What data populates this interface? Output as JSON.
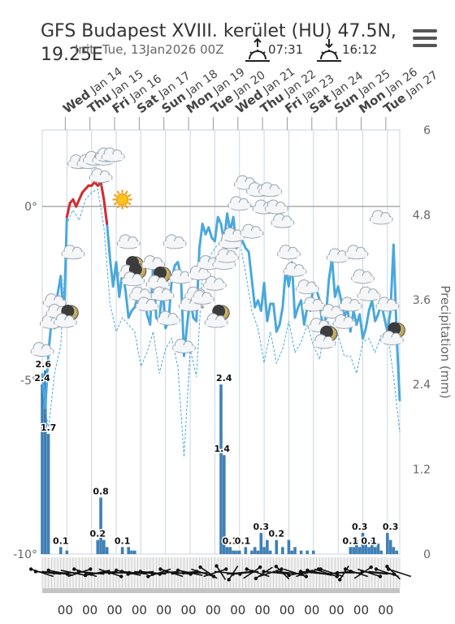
{
  "header": {
    "title": "GFS Budapest XVIII. kerület (HU) 47.5N, 19.25E",
    "init": "Init: Tue, 13Jan2026 00Z",
    "sunrise": "07:31",
    "sunset": "16:12"
  },
  "icons": {
    "menu": "hamburger-menu-icon",
    "sunrise": "sunrise-icon",
    "sunset": "sunset-icon"
  },
  "colors": {
    "temperature": "#4aa8dc",
    "temperature_above_zero": "#d62d2d",
    "precip_bars": "#3f7fb5",
    "grid": "#c9d6e3",
    "axis": "#999999"
  },
  "chart_data": {
    "type": "line",
    "title": "",
    "days": [
      {
        "dow": "Wed",
        "date": "Jan 14"
      },
      {
        "dow": "Thu",
        "date": "Jan 15"
      },
      {
        "dow": "Fri",
        "date": "Jan 16"
      },
      {
        "dow": "Sat",
        "date": "Jan 17"
      },
      {
        "dow": "Sun",
        "date": "Jan 18"
      },
      {
        "dow": "Mon",
        "date": "Jan 19"
      },
      {
        "dow": "Tue",
        "date": "Jan 20"
      },
      {
        "dow": "Wed",
        "date": "Jan 21"
      },
      {
        "dow": "Thu",
        "date": "Jan 22"
      },
      {
        "dow": "Fri",
        "date": "Jan 23"
      },
      {
        "dow": "Sat",
        "date": "Jan 24"
      },
      {
        "dow": "Sun",
        "date": "Jan 25"
      },
      {
        "dow": "Mon",
        "date": "Jan 26"
      },
      {
        "dow": "Tue",
        "date": "Jan 27"
      }
    ],
    "hour_labels": [
      "00",
      "00",
      "00",
      "00",
      "00",
      "00",
      "00",
      "00",
      "00",
      "00",
      "00",
      "00",
      "00",
      "00"
    ],
    "x_range_hours": [
      0,
      348
    ],
    "y_left": {
      "ticks": [
        0,
        -5,
        -10
      ],
      "tick_labels": [
        "0°",
        "-5°",
        "-10°"
      ],
      "range": [
        -10,
        2.2
      ]
    },
    "y_right": {
      "label": "Precipitation (mm)",
      "ticks": [
        6,
        4.8,
        3.6,
        2.4,
        1.2,
        0
      ],
      "tick_labels": [
        "6",
        "4.8",
        "3.6",
        "2.4",
        "1.2",
        "0"
      ],
      "range": [
        0,
        6
      ]
    },
    "temperature": {
      "hours": [
        0,
        3,
        6,
        9,
        12,
        15,
        18,
        21,
        24,
        27,
        30,
        33,
        36,
        39,
        42,
        45,
        48,
        51,
        54,
        57,
        60,
        63,
        66,
        69,
        72,
        75,
        78,
        81,
        84,
        87,
        90,
        93,
        96,
        99,
        102,
        105,
        108,
        111,
        114,
        117,
        120,
        123,
        126,
        129,
        132,
        135,
        138,
        141,
        144,
        147,
        150,
        153,
        156,
        159,
        162,
        165,
        168,
        171,
        174,
        177,
        180,
        183,
        186,
        189,
        192,
        195,
        198,
        201,
        204,
        207,
        210,
        213,
        216,
        219,
        222,
        225,
        228,
        231,
        234,
        237,
        240,
        243,
        246,
        249,
        252,
        255,
        258,
        261,
        264,
        267,
        270,
        273,
        276,
        279,
        282,
        285,
        288,
        291,
        294,
        297,
        300,
        303,
        306,
        309,
        312,
        315,
        318,
        321,
        324,
        327,
        330,
        333,
        336,
        339,
        342,
        345,
        348
      ],
      "values": [
        -4.8,
        -5.8,
        -4.2,
        -3.3,
        -3.5,
        -2.5,
        -2.0,
        -3.4,
        -0.3,
        0.1,
        0.2,
        0.0,
        0.2,
        0.4,
        0.5,
        0.6,
        0.6,
        0.7,
        0.6,
        0.7,
        0.2,
        -0.5,
        -1.5,
        -2.3,
        -1.6,
        -2.6,
        -1.9,
        -2.4,
        -3.2,
        -3.0,
        -2.9,
        -2.6,
        -2.7,
        -2.5,
        -3.1,
        -3.4,
        -1.6,
        -3.2,
        -3.3,
        -2.3,
        -3.5,
        -3.3,
        -2.1,
        -1.7,
        -1.6,
        -2.0,
        -4.3,
        -3.4,
        -2.6,
        -3.2,
        -3.3,
        -1.2,
        -0.5,
        -0.8,
        -0.6,
        -0.9,
        -1.0,
        -0.3,
        -0.5,
        -1.0,
        -0.2,
        -0.7,
        -0.3,
        -1.2,
        -0.8,
        -1.0,
        -1.2,
        -1.3,
        -2.1,
        -2.9,
        -2.7,
        -3.0,
        -2.2,
        -3.3,
        -2.8,
        -2.8,
        -3.6,
        -3.4,
        -2.9,
        -1.8,
        -2.3,
        -1.6,
        -3.2,
        -2.9,
        -2.7,
        -3.4,
        -2.9,
        -3.0,
        -2.2,
        -2.4,
        -2.7,
        -3.5,
        -3.2,
        -2.1,
        -1.5,
        -2.6,
        -2.3,
        -2.7,
        -3.2,
        -2.9,
        -3.6,
        -3.0,
        -3.4,
        -3.1,
        -3.8,
        -3.5,
        -3.0,
        -2.7,
        -3.3,
        -3.1,
        -2.8,
        -3.2,
        -3.6,
        -3.0,
        -1.1,
        -3.7,
        -5.6
      ]
    },
    "dewpoint": {
      "hours": [
        0,
        6,
        12,
        18,
        24,
        30,
        36,
        42,
        48,
        54,
        60,
        66,
        72,
        78,
        84,
        90,
        96,
        102,
        108,
        114,
        120,
        126,
        132,
        138,
        144,
        150,
        156,
        162,
        168,
        174,
        180,
        186,
        192,
        198,
        204,
        210,
        216,
        222,
        228,
        234,
        240,
        246,
        252,
        258,
        264,
        270,
        276,
        282,
        288,
        294,
        300,
        306,
        312,
        318,
        324,
        330,
        336,
        342,
        348
      ],
      "values": [
        -5.2,
        -6.4,
        -4.8,
        -4.0,
        -0.5,
        -0.1,
        -0.4,
        0.2,
        0.4,
        0.5,
        -0.6,
        -2.8,
        -3.6,
        -3.2,
        -3.4,
        -3.6,
        -4.6,
        -4.2,
        -3.6,
        -4.8,
        -4.1,
        -3.8,
        -4.6,
        -7.2,
        -4.1,
        -4.9,
        -1.9,
        -1.5,
        -1.2,
        -1.0,
        -0.5,
        -0.9,
        -1.0,
        -1.9,
        -3.0,
        -3.5,
        -4.5,
        -3.6,
        -4.5,
        -4.1,
        -3.3,
        -4.2,
        -3.9,
        -3.4,
        -4.0,
        -4.4,
        -3.2,
        -3.5,
        -3.7,
        -4.3,
        -4.3,
        -4.8,
        -3.9,
        -3.8,
        -4.2,
        -3.7,
        -3.6,
        -4.9,
        -6.5
      ]
    },
    "precipitation": {
      "hours": [
        0,
        3,
        6,
        18,
        24,
        54,
        57,
        60,
        63,
        78,
        84,
        87,
        90,
        174,
        177,
        180,
        183,
        186,
        189,
        192,
        198,
        204,
        207,
        210,
        213,
        216,
        219,
        222,
        228,
        234,
        240,
        243,
        246,
        252,
        258,
        264,
        300,
        303,
        306,
        309,
        312,
        315,
        318,
        321,
        324,
        327,
        330,
        336,
        339,
        342,
        345
      ],
      "values": [
        2.4,
        2.6,
        1.7,
        0.1,
        0.05,
        0.2,
        0.8,
        0.2,
        0.1,
        0.1,
        0.1,
        0.05,
        0.05,
        2.4,
        1.4,
        0.1,
        0.1,
        0.05,
        0.05,
        0.05,
        0.1,
        0.05,
        0.1,
        0.05,
        0.3,
        0.1,
        0.2,
        0.05,
        0.2,
        0.1,
        0.2,
        0.05,
        0.1,
        0.05,
        0.05,
        0.05,
        0.1,
        0.1,
        0.2,
        0.1,
        0.3,
        0.2,
        0.1,
        0.2,
        0.1,
        0.15,
        0.05,
        0.3,
        0.2,
        0.1,
        0.05
      ]
    },
    "precip_labels": [
      {
        "hour": 1,
        "value": 2.6,
        "text": "2.6"
      },
      {
        "hour": 0,
        "value": 2.4,
        "text": "2.4"
      },
      {
        "hour": 6,
        "value": 1.7,
        "text": "1.7"
      },
      {
        "hour": 18,
        "value": 0.1,
        "text": "0.1"
      },
      {
        "hour": 57,
        "value": 0.8,
        "text": "0.8"
      },
      {
        "hour": 54,
        "value": 0.2,
        "text": "0.2"
      },
      {
        "hour": 78,
        "value": 0.1,
        "text": "0.1"
      },
      {
        "hour": 177,
        "value": 2.4,
        "text": "2.4"
      },
      {
        "hour": 175,
        "value": 1.4,
        "text": "1.4"
      },
      {
        "hour": 183,
        "value": 0.1,
        "text": "0.1"
      },
      {
        "hour": 195,
        "value": 0.1,
        "text": "0.1"
      },
      {
        "hour": 213,
        "value": 0.3,
        "text": "0.3"
      },
      {
        "hour": 228,
        "value": 0.2,
        "text": "0.2"
      },
      {
        "hour": 300,
        "value": 0.1,
        "text": "0.1"
      },
      {
        "hour": 309,
        "value": 0.3,
        "text": "0.3"
      },
      {
        "hour": 318,
        "value": 0.1,
        "text": "0.1"
      },
      {
        "hour": 339,
        "value": 0.3,
        "text": "0.3"
      }
    ],
    "weather_icons": [
      {
        "hour": 0,
        "temp": -4.1,
        "icon": "cloud"
      },
      {
        "hour": 9,
        "temp": -3.3,
        "icon": "cloud"
      },
      {
        "hour": 12,
        "temp": -2.7,
        "icon": "cloud"
      },
      {
        "hour": 15,
        "temp": -3.0,
        "icon": "cloud"
      },
      {
        "hour": 24,
        "temp": -3.2,
        "icon": "moon-cloud"
      },
      {
        "hour": 30,
        "temp": -1.3,
        "icon": "cloud"
      },
      {
        "hour": 36,
        "temp": 1.3,
        "icon": "cloud"
      },
      {
        "hour": 45,
        "temp": 1.3,
        "icon": "cloud"
      },
      {
        "hour": 51,
        "temp": 1.4,
        "icon": "cloud"
      },
      {
        "hour": 57,
        "temp": 0.9,
        "icon": "snow-cloud"
      },
      {
        "hour": 60,
        "temp": 1.4,
        "icon": "cloud"
      },
      {
        "hour": 63,
        "temp": 1.5,
        "icon": "cloud"
      },
      {
        "hour": 69,
        "temp": 1.5,
        "icon": "cloud"
      },
      {
        "hour": 78,
        "temp": 0.2,
        "icon": "sun"
      },
      {
        "hour": 84,
        "temp": -1.0,
        "icon": "cloud"
      },
      {
        "hour": 87,
        "temp": -1.8,
        "icon": "moon-cloud"
      },
      {
        "hour": 90,
        "temp": -2.0,
        "icon": "moon-cloud"
      },
      {
        "hour": 96,
        "temp": -2.5,
        "icon": "cloud"
      },
      {
        "hour": 102,
        "temp": -2.8,
        "icon": "cloud"
      },
      {
        "hour": 108,
        "temp": -1.6,
        "icon": "cloud"
      },
      {
        "hour": 114,
        "temp": -2.1,
        "icon": "moon-cloud"
      },
      {
        "hour": 117,
        "temp": -2.5,
        "icon": "cloud"
      },
      {
        "hour": 123,
        "temp": -3.2,
        "icon": "cloud"
      },
      {
        "hour": 129,
        "temp": -1.0,
        "icon": "cloud"
      },
      {
        "hour": 135,
        "temp": -2.0,
        "icon": "cloud"
      },
      {
        "hour": 138,
        "temp": -4.0,
        "icon": "cloud"
      },
      {
        "hour": 144,
        "temp": -2.8,
        "icon": "cloud"
      },
      {
        "hour": 150,
        "temp": -2.5,
        "icon": "cloud"
      },
      {
        "hour": 153,
        "temp": -1.9,
        "icon": "cloud"
      },
      {
        "hour": 156,
        "temp": -2.6,
        "icon": "snow-cloud"
      },
      {
        "hour": 162,
        "temp": -1.6,
        "icon": "cloud"
      },
      {
        "hour": 168,
        "temp": -2.2,
        "icon": "cloud"
      },
      {
        "hour": 171,
        "temp": -3.2,
        "icon": "moon-cloud"
      },
      {
        "hour": 177,
        "temp": -1.6,
        "icon": "cloud"
      },
      {
        "hour": 180,
        "temp": -1.4,
        "icon": "cloud"
      },
      {
        "hour": 183,
        "temp": -1.0,
        "icon": "cloud"
      },
      {
        "hour": 186,
        "temp": -0.8,
        "icon": "cloud"
      },
      {
        "hour": 192,
        "temp": 0.1,
        "icon": "cloud"
      },
      {
        "hour": 198,
        "temp": 0.7,
        "icon": "cloud"
      },
      {
        "hour": 204,
        "temp": -0.7,
        "icon": "cloud"
      },
      {
        "hour": 210,
        "temp": 0.5,
        "icon": "cloud"
      },
      {
        "hour": 216,
        "temp": 0.0,
        "icon": "cloud"
      },
      {
        "hour": 222,
        "temp": 0.5,
        "icon": "cloud"
      },
      {
        "hour": 228,
        "temp": 0.0,
        "icon": "cloud"
      },
      {
        "hour": 234,
        "temp": -0.4,
        "icon": "cloud"
      },
      {
        "hour": 240,
        "temp": -1.3,
        "icon": "cloud"
      },
      {
        "hour": 246,
        "temp": -1.8,
        "icon": "cloud"
      },
      {
        "hour": 258,
        "temp": -2.3,
        "icon": "cloud"
      },
      {
        "hour": 264,
        "temp": -2.8,
        "icon": "cloud"
      },
      {
        "hour": 270,
        "temp": -3.4,
        "icon": "cloud"
      },
      {
        "hour": 276,
        "temp": -3.8,
        "icon": "moon-cloud"
      },
      {
        "hour": 282,
        "temp": -3.0,
        "icon": "cloud"
      },
      {
        "hour": 288,
        "temp": -1.4,
        "icon": "cloud"
      },
      {
        "hour": 294,
        "temp": -3.3,
        "icon": "cloud"
      },
      {
        "hour": 300,
        "temp": -2.8,
        "icon": "cloud"
      },
      {
        "hour": 306,
        "temp": -1.3,
        "icon": "cloud"
      },
      {
        "hour": 312,
        "temp": -2.0,
        "icon": "cloud"
      },
      {
        "hour": 318,
        "temp": -2.5,
        "icon": "cloud"
      },
      {
        "hour": 330,
        "temp": -0.3,
        "icon": "cloud"
      },
      {
        "hour": 336,
        "temp": -2.8,
        "icon": "cloud"
      },
      {
        "hour": 342,
        "temp": -3.7,
        "icon": "moon-cloud"
      }
    ],
    "wind_sample_hours": [
      0,
      6,
      12,
      18,
      24,
      30,
      36,
      42,
      48,
      54,
      60,
      66,
      72,
      78,
      84,
      90,
      96,
      102,
      108,
      114,
      120,
      126,
      132,
      138,
      144,
      150,
      156,
      162,
      168,
      174,
      180,
      186,
      192,
      198,
      204,
      210,
      216,
      222,
      228,
      234,
      240,
      246,
      252,
      258,
      264,
      270,
      276,
      282,
      288,
      294,
      300,
      306,
      312,
      318,
      324,
      330,
      336,
      342,
      348
    ],
    "wind_direction_deg": [
      300,
      280,
      100,
      290,
      270,
      110,
      60,
      300,
      280,
      250,
      260,
      120,
      90,
      270,
      290,
      280,
      260,
      100,
      280,
      240,
      260,
      300,
      100,
      80,
      290,
      270,
      120,
      320,
      60,
      340,
      100,
      200,
      80,
      260,
      40,
      300,
      220,
      60,
      280,
      330,
      100,
      120,
      250,
      60,
      280,
      290,
      120,
      300,
      80,
      200,
      270,
      300,
      40,
      120,
      280,
      100,
      300,
      330,
      300
    ]
  }
}
